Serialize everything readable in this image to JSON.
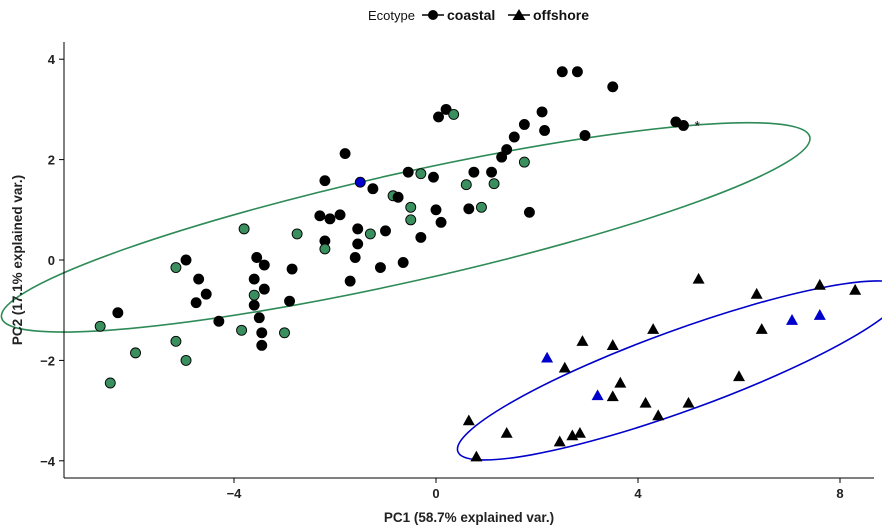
{
  "chart_data": {
    "type": "scatter",
    "xlabel": "PC1 (58.7% explained var.)",
    "ylabel": "PC2 (17.1% explained var.)",
    "xlim": [
      -7.4,
      8.8
    ],
    "ylim": [
      -4.4,
      4.3
    ],
    "x_ticks": [
      -4,
      0,
      4,
      8
    ],
    "y_ticks": [
      -4,
      -2,
      0,
      2,
      4
    ],
    "grid": false,
    "legend": {
      "title": "Ecotype",
      "placement": "top",
      "entries": [
        {
          "label": "coastal",
          "marker": "circle"
        },
        {
          "label": "offshore",
          "marker": "triangle"
        }
      ]
    },
    "annotations": [
      {
        "text": "*",
        "x": 5.1,
        "y": 2.72
      }
    ],
    "colors": {
      "black": "#000000",
      "green": "#3a8f5f",
      "blue": "#0000cc"
    },
    "ellipses": [
      {
        "group": "coastal",
        "color": "#2e8b57",
        "cx": -0.6,
        "cy": 0.65,
        "rx": 8.2,
        "ry": 1.08,
        "angle_deg": 12.6
      },
      {
        "group": "offshore",
        "color": "#0000cc",
        "cx": 4.85,
        "cy": -2.2,
        "rx": 4.7,
        "ry": 0.8,
        "angle_deg": 20
      }
    ],
    "series": [
      {
        "name": "coastal",
        "marker": "circle",
        "points": [
          {
            "x": 2.5,
            "y": 3.75,
            "c": "black"
          },
          {
            "x": 2.8,
            "y": 3.75,
            "c": "black"
          },
          {
            "x": 3.5,
            "y": 3.45,
            "c": "black"
          },
          {
            "x": 4.75,
            "y": 2.75,
            "c": "black"
          },
          {
            "x": 4.9,
            "y": 2.68,
            "c": "black"
          },
          {
            "x": 0.2,
            "y": 3.0,
            "c": "black"
          },
          {
            "x": 0.35,
            "y": 2.9,
            "c": "green"
          },
          {
            "x": 0.05,
            "y": 2.85,
            "c": "black"
          },
          {
            "x": 2.1,
            "y": 2.95,
            "c": "black"
          },
          {
            "x": 1.75,
            "y": 2.7,
            "c": "black"
          },
          {
            "x": 2.15,
            "y": 2.58,
            "c": "black"
          },
          {
            "x": 1.55,
            "y": 2.45,
            "c": "black"
          },
          {
            "x": 2.95,
            "y": 2.48,
            "c": "black"
          },
          {
            "x": 1.4,
            "y": 2.2,
            "c": "black"
          },
          {
            "x": 1.3,
            "y": 2.05,
            "c": "black"
          },
          {
            "x": 1.75,
            "y": 1.95,
            "c": "green"
          },
          {
            "x": 1.1,
            "y": 1.75,
            "c": "black"
          },
          {
            "x": 0.75,
            "y": 1.75,
            "c": "black"
          },
          {
            "x": -1.8,
            "y": 2.12,
            "c": "black"
          },
          {
            "x": -1.5,
            "y": 1.55,
            "c": "blue"
          },
          {
            "x": -1.25,
            "y": 1.42,
            "c": "black"
          },
          {
            "x": -2.2,
            "y": 1.58,
            "c": "black"
          },
          {
            "x": -0.55,
            "y": 1.75,
            "c": "black"
          },
          {
            "x": -0.3,
            "y": 1.72,
            "c": "green"
          },
          {
            "x": -0.05,
            "y": 1.65,
            "c": "black"
          },
          {
            "x": 0.6,
            "y": 1.5,
            "c": "green"
          },
          {
            "x": 1.15,
            "y": 1.52,
            "c": "green"
          },
          {
            "x": -0.85,
            "y": 1.28,
            "c": "green"
          },
          {
            "x": -0.75,
            "y": 1.25,
            "c": "black"
          },
          {
            "x": -0.5,
            "y": 1.05,
            "c": "green"
          },
          {
            "x": 0.0,
            "y": 1.0,
            "c": "black"
          },
          {
            "x": 0.65,
            "y": 1.02,
            "c": "black"
          },
          {
            "x": 0.9,
            "y": 1.05,
            "c": "green"
          },
          {
            "x": 1.85,
            "y": 0.95,
            "c": "black"
          },
          {
            "x": -0.5,
            "y": 0.8,
            "c": "green"
          },
          {
            "x": 0.1,
            "y": 0.75,
            "c": "black"
          },
          {
            "x": -2.3,
            "y": 0.88,
            "c": "black"
          },
          {
            "x": -2.1,
            "y": 0.82,
            "c": "black"
          },
          {
            "x": -1.9,
            "y": 0.9,
            "c": "black"
          },
          {
            "x": -1.55,
            "y": 0.62,
            "c": "black"
          },
          {
            "x": -1.3,
            "y": 0.52,
            "c": "green"
          },
          {
            "x": -1.0,
            "y": 0.58,
            "c": "black"
          },
          {
            "x": -0.3,
            "y": 0.45,
            "c": "black"
          },
          {
            "x": -2.75,
            "y": 0.52,
            "c": "green"
          },
          {
            "x": -2.2,
            "y": 0.38,
            "c": "black"
          },
          {
            "x": -2.2,
            "y": 0.22,
            "c": "green"
          },
          {
            "x": -1.55,
            "y": 0.32,
            "c": "black"
          },
          {
            "x": -1.6,
            "y": 0.05,
            "c": "black"
          },
          {
            "x": -1.1,
            "y": -0.15,
            "c": "black"
          },
          {
            "x": -0.65,
            "y": -0.05,
            "c": "black"
          },
          {
            "x": -1.7,
            "y": -0.42,
            "c": "black"
          },
          {
            "x": -3.8,
            "y": 0.62,
            "c": "green"
          },
          {
            "x": -3.55,
            "y": 0.05,
            "c": "black"
          },
          {
            "x": -3.4,
            "y": -0.1,
            "c": "black"
          },
          {
            "x": -2.85,
            "y": -0.18,
            "c": "black"
          },
          {
            "x": -3.6,
            "y": -0.38,
            "c": "black"
          },
          {
            "x": -3.4,
            "y": -0.58,
            "c": "black"
          },
          {
            "x": -3.6,
            "y": -0.7,
            "c": "green"
          },
          {
            "x": -2.9,
            "y": -0.82,
            "c": "black"
          },
          {
            "x": -3.6,
            "y": -0.9,
            "c": "black"
          },
          {
            "x": -3.5,
            "y": -1.15,
            "c": "black"
          },
          {
            "x": -3.85,
            "y": -1.4,
            "c": "green"
          },
          {
            "x": -3.45,
            "y": -1.45,
            "c": "black"
          },
          {
            "x": -3.0,
            "y": -1.45,
            "c": "green"
          },
          {
            "x": -3.45,
            "y": -1.7,
            "c": "black"
          },
          {
            "x": -4.95,
            "y": 0.0,
            "c": "black"
          },
          {
            "x": -5.15,
            "y": -0.15,
            "c": "green"
          },
          {
            "x": -4.7,
            "y": -0.38,
            "c": "black"
          },
          {
            "x": -4.55,
            "y": -0.68,
            "c": "black"
          },
          {
            "x": -4.75,
            "y": -0.85,
            "c": "black"
          },
          {
            "x": -4.3,
            "y": -1.22,
            "c": "black"
          },
          {
            "x": -6.3,
            "y": -1.05,
            "c": "black"
          },
          {
            "x": -5.15,
            "y": -1.62,
            "c": "green"
          },
          {
            "x": -4.95,
            "y": -2.0,
            "c": "green"
          },
          {
            "x": -6.65,
            "y": -1.32,
            "c": "green"
          },
          {
            "x": -5.95,
            "y": -1.85,
            "c": "green"
          },
          {
            "x": -6.45,
            "y": -2.45,
            "c": "green"
          }
        ]
      },
      {
        "name": "offshore",
        "marker": "triangle",
        "points": [
          {
            "x": 5.2,
            "y": -0.38,
            "c": "black"
          },
          {
            "x": 7.6,
            "y": -0.5,
            "c": "black"
          },
          {
            "x": 8.3,
            "y": -0.6,
            "c": "black"
          },
          {
            "x": 6.35,
            "y": -0.68,
            "c": "black"
          },
          {
            "x": 7.05,
            "y": -1.2,
            "c": "blue"
          },
          {
            "x": 7.6,
            "y": -1.1,
            "c": "blue"
          },
          {
            "x": 6.45,
            "y": -1.38,
            "c": "black"
          },
          {
            "x": 4.3,
            "y": -1.38,
            "c": "black"
          },
          {
            "x": 2.9,
            "y": -1.62,
            "c": "black"
          },
          {
            "x": 3.5,
            "y": -1.7,
            "c": "black"
          },
          {
            "x": 2.2,
            "y": -1.95,
            "c": "blue"
          },
          {
            "x": 2.55,
            "y": -2.15,
            "c": "black"
          },
          {
            "x": 6.0,
            "y": -2.32,
            "c": "black"
          },
          {
            "x": 3.65,
            "y": -2.45,
            "c": "black"
          },
          {
            "x": 3.2,
            "y": -2.7,
            "c": "blue"
          },
          {
            "x": 3.5,
            "y": -2.72,
            "c": "black"
          },
          {
            "x": 4.15,
            "y": -2.85,
            "c": "black"
          },
          {
            "x": 5.0,
            "y": -2.85,
            "c": "black"
          },
          {
            "x": 4.4,
            "y": -3.1,
            "c": "black"
          },
          {
            "x": 0.65,
            "y": -3.2,
            "c": "black"
          },
          {
            "x": 1.4,
            "y": -3.45,
            "c": "black"
          },
          {
            "x": 2.85,
            "y": -3.45,
            "c": "black"
          },
          {
            "x": 2.7,
            "y": -3.5,
            "c": "black"
          },
          {
            "x": 2.45,
            "y": -3.62,
            "c": "black"
          },
          {
            "x": 0.8,
            "y": -3.92,
            "c": "black"
          }
        ]
      }
    ]
  }
}
